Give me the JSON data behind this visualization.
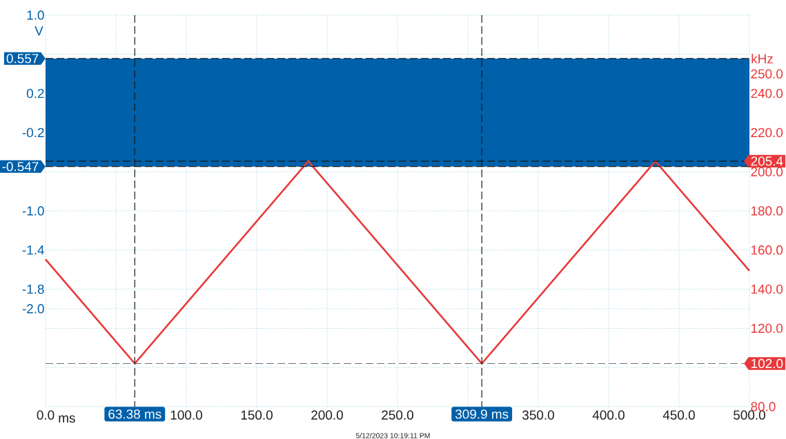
{
  "chart_data": {
    "type": "line",
    "xlabel": "ms",
    "ylabel": "V",
    "y2label": "kHz",
    "series": [
      {
        "color": "#e8393a",
        "axis": "y2",
        "x": [
          0,
          63.38,
          186.6,
          309.9,
          433.2,
          500
        ],
        "values": [
          155.2,
          102.0,
          205.4,
          102.0,
          205.4,
          149.4
        ]
      }
    ],
    "bands": [
      {
        "axis": "y",
        "from": -0.547,
        "to": 0.557,
        "color": "#0060a9"
      }
    ],
    "xlim": [
      0,
      500
    ],
    "xticks": [
      {
        "value": 0,
        "label": "0.0"
      },
      {
        "value": 50,
        "label": null
      },
      {
        "value": 100,
        "label": "100.0"
      },
      {
        "value": 150,
        "label": "150.0"
      },
      {
        "value": 200,
        "label": "200.0"
      },
      {
        "value": 250,
        "label": "250.0"
      },
      {
        "value": 300,
        "label": null
      },
      {
        "value": 350,
        "label": "350.0"
      },
      {
        "value": 400,
        "label": "400.0"
      },
      {
        "value": 450,
        "label": "450.0"
      },
      {
        "value": 500,
        "label": "500.0"
      }
    ],
    "ylim": [
      -3.0,
      1.0
    ],
    "yticks": [
      {
        "value": 1.0,
        "label": "1.0"
      },
      {
        "value": 0.6,
        "label": null
      },
      {
        "value": 0.2,
        "label": "0.2"
      },
      {
        "value": -0.2,
        "label": "-0.2"
      },
      {
        "value": -0.6,
        "label": null
      },
      {
        "value": -1.0,
        "label": "-1.0"
      },
      {
        "value": -1.4,
        "label": "-1.4"
      },
      {
        "value": -1.8,
        "label": "-1.8"
      },
      {
        "value": -2.0,
        "label": "-2.0"
      },
      {
        "value": -2.2,
        "label": null
      },
      {
        "value": -2.6,
        "label": null
      },
      {
        "value": -3.0,
        "label": null
      }
    ],
    "y2lim": [
      80,
      280
    ],
    "y2ticks": [
      {
        "value": 80,
        "label": "80.0"
      },
      {
        "value": 120,
        "label": "120.0"
      },
      {
        "value": 140,
        "label": "140.0"
      },
      {
        "value": 160,
        "label": "160.0"
      },
      {
        "value": 180,
        "label": "180.0"
      },
      {
        "value": 200,
        "label": "200.0"
      },
      {
        "value": 220,
        "label": "220.0"
      },
      {
        "value": 240,
        "label": "240.0"
      },
      {
        "value": 250,
        "label": "250.0"
      }
    ],
    "grid": true,
    "ref_lines": [
      {
        "axis": "y",
        "value": 0.557,
        "label": "0.557",
        "color": "#1a1a1a",
        "line_style": "dashed"
      },
      {
        "axis": "y",
        "value": -0.547,
        "label": "-0.547",
        "color": "#1a1a1a",
        "line_style": "dashed"
      },
      {
        "axis": "y2",
        "value": 205.4,
        "label": "205.4",
        "color": "#1a1a1a",
        "line_style": "dashed"
      },
      {
        "axis": "y2",
        "value": 102.0,
        "label": "102.0",
        "color": "#707070",
        "line_style": "dashed"
      },
      {
        "axis": "x",
        "value": 63.38,
        "label": "63.38 ms",
        "color": "#1a1a1a",
        "line_style": "dashed"
      },
      {
        "axis": "x",
        "value": 309.9,
        "label": "309.9 ms",
        "color": "#1a1a1a",
        "line_style": "dashed"
      }
    ],
    "annotations": [
      "5/12/2023 10:19:11 PM"
    ]
  }
}
